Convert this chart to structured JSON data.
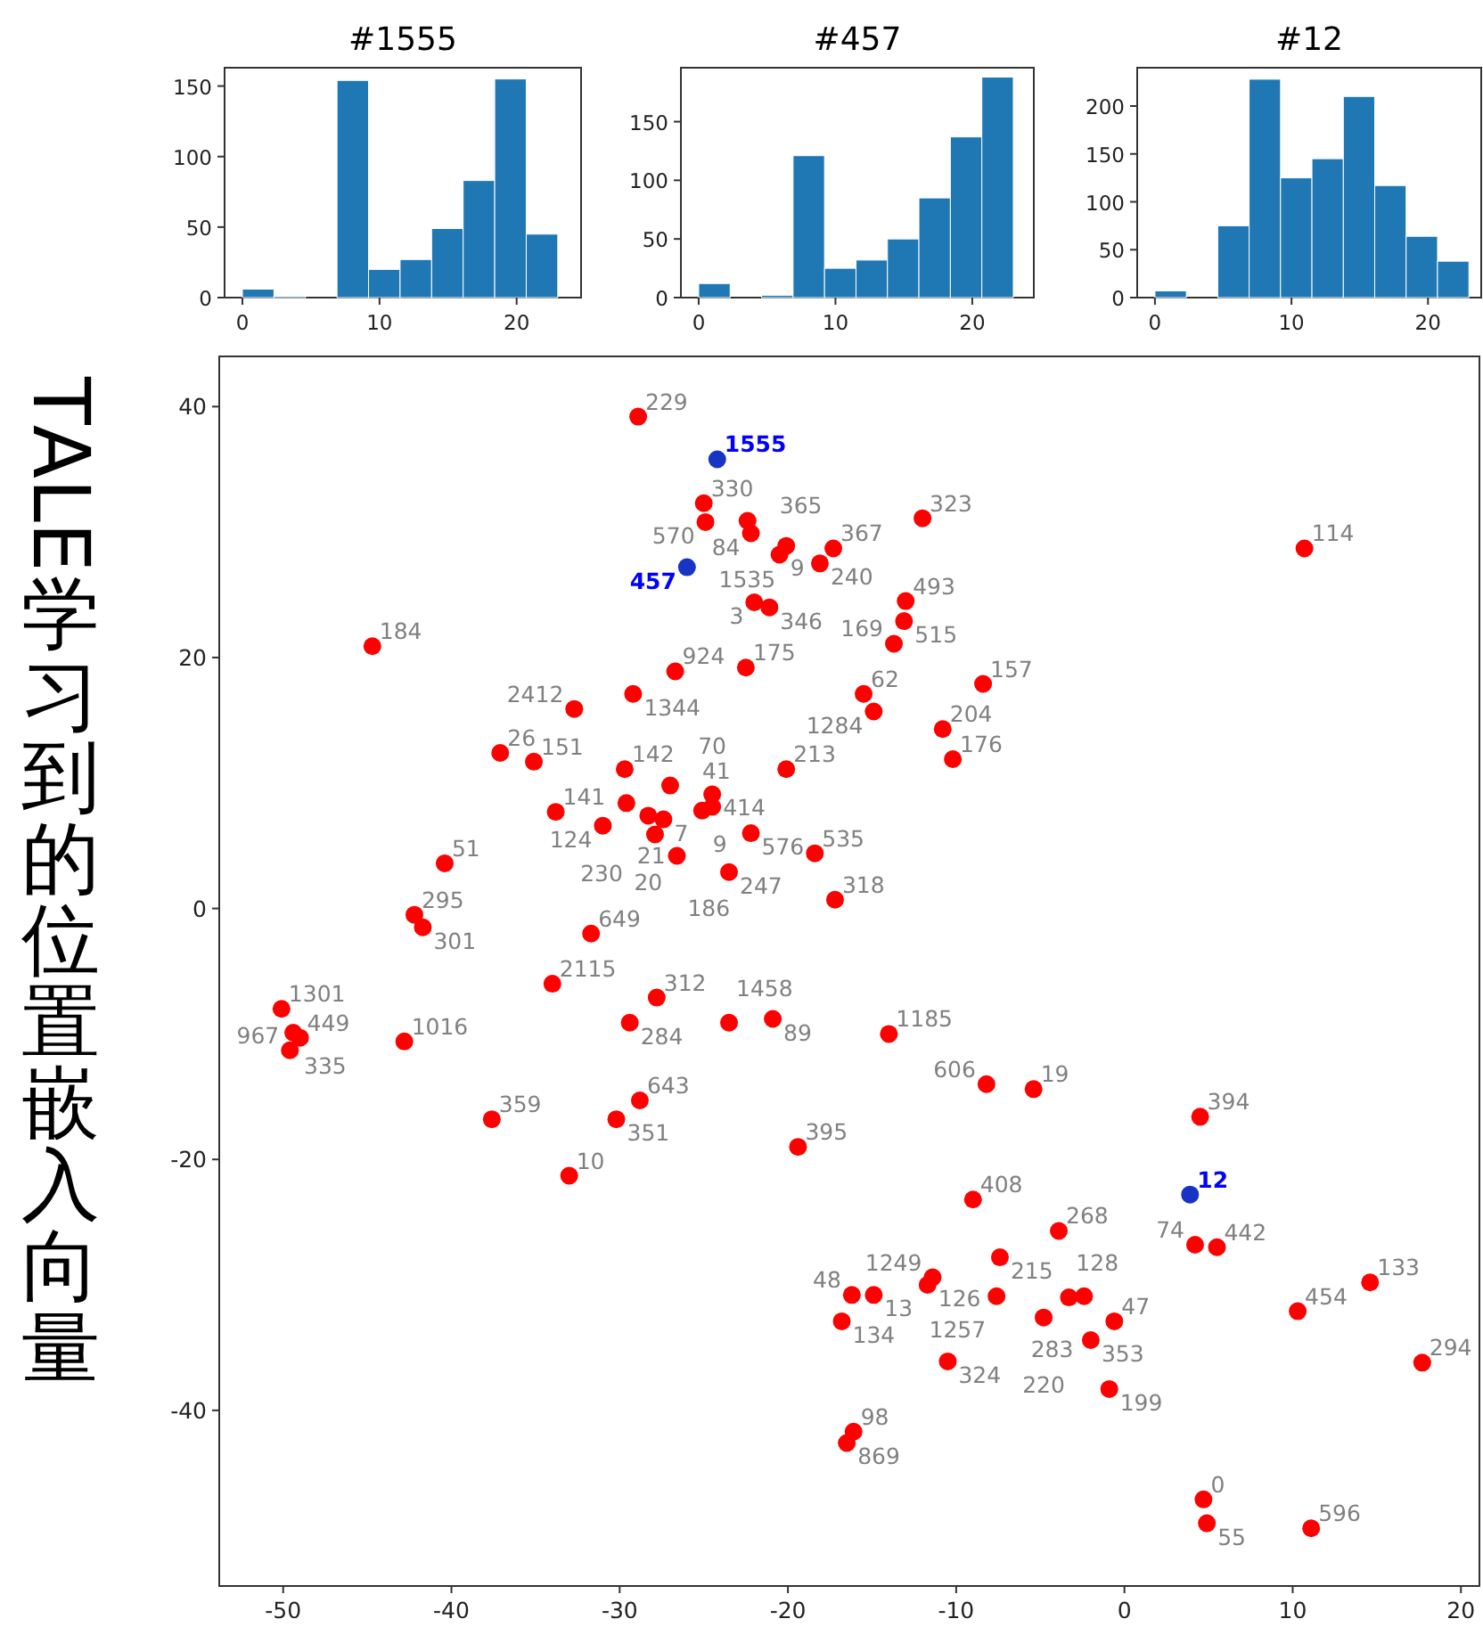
{
  "chart_data": [
    {
      "type": "histogram",
      "title": "#1555",
      "bins": [
        0,
        2.3,
        4.6,
        6.9,
        9.2,
        11.5,
        13.8,
        16.1,
        18.4,
        20.7,
        23
      ],
      "values": [
        6,
        1,
        0,
        154,
        20,
        27,
        49,
        83,
        155,
        45
      ],
      "color": "#1f77b4",
      "xlim": [
        -1.3,
        24.7
      ],
      "ylim": [
        0,
        163
      ],
      "xticks": [
        0,
        10,
        20
      ],
      "yticks": [
        0,
        50,
        100,
        150
      ],
      "grid": false
    },
    {
      "type": "histogram",
      "title": "#457",
      "bins": [
        0,
        2.3,
        4.6,
        6.9,
        9.2,
        11.5,
        13.8,
        16.1,
        18.4,
        20.7,
        23
      ],
      "values": [
        12,
        0,
        2,
        121,
        25,
        32,
        50,
        85,
        137,
        188
      ],
      "color": "#1f77b4",
      "xlim": [
        -1.3,
        24.5
      ],
      "ylim": [
        0,
        196
      ],
      "xticks": [
        0,
        10,
        20
      ],
      "yticks": [
        0,
        50,
        100,
        150
      ],
      "grid": false
    },
    {
      "type": "histogram",
      "title": "#12",
      "bins": [
        0,
        2.3,
        4.6,
        6.9,
        9.2,
        11.5,
        13.8,
        16.1,
        18.4,
        20.7,
        23
      ],
      "values": [
        7,
        0,
        75,
        228,
        125,
        145,
        210,
        117,
        64,
        38
      ],
      "color": "#1f77b4",
      "xlim": [
        -1.3,
        23.9
      ],
      "ylim": [
        0,
        240
      ],
      "xticks": [
        0,
        10,
        20
      ],
      "yticks": [
        0,
        50,
        100,
        150,
        200
      ],
      "grid": false
    },
    {
      "type": "scatter",
      "ylabel": "TALE学习到的位置嵌入向量",
      "xlim": [
        -53.8,
        21.1
      ],
      "ylim": [
        -54,
        44
      ],
      "xticks": [
        -50,
        -40,
        -30,
        -20,
        -10,
        0,
        10,
        20
      ],
      "yticks": [
        -40,
        -20,
        0,
        20,
        40
      ],
      "grid": false,
      "marker": "circle",
      "series": [
        {
          "color": "#ff0000",
          "x": [
            -28.9,
            -25.0,
            -24.9,
            -22.4,
            -22.2,
            -20.5,
            -20.1,
            -17.3,
            -18.1,
            -12.0,
            10.7,
            -22.0,
            -21.1,
            -13.0,
            -13.1,
            -13.7,
            -44.7,
            -26.7,
            -22.5,
            -8.4,
            -29.2,
            -15.5,
            -32.7,
            -14.9,
            -10.8,
            -37.1,
            -35.1,
            -10.2,
            -29.7,
            -20.1,
            -27.0,
            -24.5,
            -29.6,
            -28.3,
            -27.4,
            -25.1,
            -24.5,
            -33.8,
            -31.0,
            -27.9,
            -22.2,
            -26.6,
            -23.5,
            -18.4,
            -17.2,
            -40.4,
            -42.2,
            -41.7,
            -31.7,
            -34.0,
            -27.8,
            -29.4,
            -23.5,
            -20.9,
            -50.1,
            -49.4,
            -49.0,
            -49.6,
            -42.8,
            -14.0,
            -8.2,
            -5.4,
            -37.6,
            -28.8,
            -30.2,
            4.5,
            -19.4,
            -33.0,
            -9.0,
            -3.9,
            4.2,
            5.5,
            -7.4,
            -11.4,
            -11.7,
            -16.2,
            -14.9,
            -7.6,
            -3.3,
            -2.4,
            -16.8,
            -4.8,
            -0.6,
            -2.0,
            10.3,
            14.6,
            -10.5,
            17.7,
            -0.9,
            -16.1,
            -16.5,
            4.7,
            4.9,
            11.1
          ],
          "values": [
            39.2,
            32.3,
            30.8,
            30.9,
            29.9,
            28.2,
            28.9,
            28.7,
            27.5,
            31.1,
            28.7,
            24.4,
            24.0,
            24.5,
            22.9,
            21.1,
            20.9,
            18.9,
            19.2,
            17.9,
            17.1,
            17.1,
            15.9,
            15.7,
            14.3,
            12.4,
            11.7,
            11.9,
            11.1,
            11.1,
            9.8,
            9.1,
            8.4,
            7.4,
            7.1,
            7.8,
            8.1,
            7.7,
            6.6,
            5.9,
            6.0,
            4.2,
            2.9,
            4.4,
            0.7,
            3.6,
            -0.5,
            -1.5,
            -2.0,
            -6.0,
            -7.1,
            -9.1,
            -9.1,
            -8.8,
            -8.0,
            -9.9,
            -10.3,
            -11.3,
            -10.6,
            -10.0,
            -14.0,
            -14.4,
            -16.8,
            -15.3,
            -16.8,
            -16.6,
            -19.0,
            -21.3,
            -23.2,
            -25.7,
            -26.8,
            -27.0,
            -27.8,
            -29.4,
            -30.0,
            -30.8,
            -30.8,
            -30.9,
            -31.0,
            -30.9,
            -32.9,
            -32.6,
            -32.9,
            -34.4,
            -32.1,
            -29.8,
            -36.1,
            -36.2,
            -38.3,
            -41.7,
            -42.6,
            -47.1,
            -49.0,
            -49.4
          ]
        },
        {
          "color": "#1834c4",
          "x": [
            -24.2,
            -26.0,
            3.9
          ],
          "values": [
            35.8,
            27.2,
            -22.8
          ]
        }
      ],
      "annotations": [
        {
          "text": "229",
          "x": -28.9,
          "y": 39.2
        },
        {
          "text": "330",
          "x": -25.0,
          "y": 32.3
        },
        {
          "text": "570",
          "x": -24.9,
          "y": 30.8
        },
        {
          "text": "365",
          "x": -22.4,
          "y": 30.9
        },
        {
          "text": "84",
          "x": -22.2,
          "y": 29.9
        },
        {
          "text": "9",
          "x": -20.5,
          "y": 28.2
        },
        {
          "text": "1535",
          "x": -20.1,
          "y": 28.9
        },
        {
          "text": "367",
          "x": -17.3,
          "y": 28.7
        },
        {
          "text": "240",
          "x": -18.1,
          "y": 27.5
        },
        {
          "text": "323",
          "x": -12.0,
          "y": 31.1
        },
        {
          "text": "114",
          "x": 10.7,
          "y": 28.7
        },
        {
          "text": "3",
          "x": -22.0,
          "y": 24.4
        },
        {
          "text": "346",
          "x": -21.1,
          "y": 24.0
        },
        {
          "text": "493",
          "x": -13.0,
          "y": 24.5
        },
        {
          "text": "515",
          "x": -13.1,
          "y": 22.9
        },
        {
          "text": "169",
          "x": -13.7,
          "y": 21.1
        },
        {
          "text": "184",
          "x": -44.7,
          "y": 20.9
        },
        {
          "text": "924",
          "x": -26.7,
          "y": 18.9
        },
        {
          "text": "175",
          "x": -22.5,
          "y": 19.2
        },
        {
          "text": "157",
          "x": -8.4,
          "y": 17.9
        },
        {
          "text": "1344",
          "x": -29.2,
          "y": 17.1
        },
        {
          "text": "62",
          "x": -15.5,
          "y": 17.1
        },
        {
          "text": "2412",
          "x": -32.7,
          "y": 15.9
        },
        {
          "text": "1284",
          "x": -14.9,
          "y": 15.7
        },
        {
          "text": "204",
          "x": -10.8,
          "y": 14.3
        },
        {
          "text": "26",
          "x": -37.1,
          "y": 12.4
        },
        {
          "text": "151",
          "x": -35.1,
          "y": 11.7
        },
        {
          "text": "176",
          "x": -10.2,
          "y": 11.9
        },
        {
          "text": "142",
          "x": -29.7,
          "y": 11.1
        },
        {
          "text": "213",
          "x": -20.1,
          "y": 11.1
        },
        {
          "text": "41",
          "x": -27.0,
          "y": 9.8
        },
        {
          "text": "414",
          "x": -24.5,
          "y": 9.1
        },
        {
          "text": "21",
          "x": -29.6,
          "y": 8.4
        },
        {
          "text": "20",
          "x": -28.3,
          "y": 7.4
        },
        {
          "text": "7",
          "x": -27.4,
          "y": 7.1
        },
        {
          "text": "9",
          "x": -25.1,
          "y": 7.8
        },
        {
          "text": "70",
          "x": -24.5,
          "y": 8.1
        },
        {
          "text": "141",
          "x": -33.8,
          "y": 7.7
        },
        {
          "text": "124",
          "x": -31.0,
          "y": 6.6
        },
        {
          "text": "230",
          "x": -27.9,
          "y": 5.9
        },
        {
          "text": "576",
          "x": -22.2,
          "y": 6.0
        },
        {
          "text": "186",
          "x": -26.6,
          "y": 4.2
        },
        {
          "text": "247",
          "x": -23.5,
          "y": 2.9
        },
        {
          "text": "535",
          "x": -18.4,
          "y": 4.4
        },
        {
          "text": "318",
          "x": -17.2,
          "y": 0.7
        },
        {
          "text": "51",
          "x": -40.4,
          "y": 3.6
        },
        {
          "text": "295",
          "x": -42.2,
          "y": -0.5
        },
        {
          "text": "301",
          "x": -41.7,
          "y": -1.5
        },
        {
          "text": "649",
          "x": -31.7,
          "y": -2.0
        },
        {
          "text": "2115",
          "x": -34.0,
          "y": -6.0
        },
        {
          "text": "312",
          "x": -27.8,
          "y": -7.1
        },
        {
          "text": "284",
          "x": -29.4,
          "y": -9.1
        },
        {
          "text": "1458",
          "x": -23.5,
          "y": -9.1
        },
        {
          "text": "89",
          "x": -20.9,
          "y": -8.8
        },
        {
          "text": "1301",
          "x": -50.1,
          "y": -8.0
        },
        {
          "text": "335",
          "x": -49.4,
          "y": -9.9
        },
        {
          "text": "449",
          "x": -49.0,
          "y": -10.3
        },
        {
          "text": "967",
          "x": -49.6,
          "y": -11.3
        },
        {
          "text": "1016",
          "x": -42.8,
          "y": -10.6
        },
        {
          "text": "1185",
          "x": -14.0,
          "y": -10.0
        },
        {
          "text": "606",
          "x": -8.2,
          "y": -14.0
        },
        {
          "text": "19",
          "x": -5.4,
          "y": -14.4
        },
        {
          "text": "359",
          "x": -37.6,
          "y": -16.8
        },
        {
          "text": "643",
          "x": -28.8,
          "y": -15.3
        },
        {
          "text": "351",
          "x": -30.2,
          "y": -16.8
        },
        {
          "text": "394",
          "x": 4.5,
          "y": -16.6
        },
        {
          "text": "395",
          "x": -19.4,
          "y": -19.0
        },
        {
          "text": "10",
          "x": -33.0,
          "y": -21.3
        },
        {
          "text": "408",
          "x": -9.0,
          "y": -23.2
        },
        {
          "text": "268",
          "x": -3.9,
          "y": -25.7
        },
        {
          "text": "74",
          "x": 4.2,
          "y": -26.8
        },
        {
          "text": "442",
          "x": 5.5,
          "y": -27.0
        },
        {
          "text": "215",
          "x": -7.4,
          "y": -27.8
        },
        {
          "text": "1249",
          "x": -11.4,
          "y": -29.4
        },
        {
          "text": "126",
          "x": -11.7,
          "y": -30.0
        },
        {
          "text": "48",
          "x": -16.2,
          "y": -30.8
        },
        {
          "text": "13",
          "x": -14.9,
          "y": -30.8
        },
        {
          "text": "1257",
          "x": -7.6,
          "y": -30.9
        },
        {
          "text": "128",
          "x": -3.3,
          "y": -31.0
        },
        {
          "text": "283",
          "x": -2.4,
          "y": -30.9
        },
        {
          "text": "134",
          "x": -16.8,
          "y": -32.9
        },
        {
          "text": "220",
          "x": -4.8,
          "y": -32.6
        },
        {
          "text": "47",
          "x": -0.6,
          "y": -32.9
        },
        {
          "text": "353",
          "x": -2.0,
          "y": -34.4
        },
        {
          "text": "454",
          "x": 10.3,
          "y": -32.1
        },
        {
          "text": "133",
          "x": 14.6,
          "y": -29.8
        },
        {
          "text": "324",
          "x": -10.5,
          "y": -36.1
        },
        {
          "text": "294",
          "x": 17.7,
          "y": -36.2
        },
        {
          "text": "199",
          "x": -0.9,
          "y": -38.3
        },
        {
          "text": "98",
          "x": -16.1,
          "y": -41.7
        },
        {
          "text": "869",
          "x": -16.5,
          "y": -42.6
        },
        {
          "text": "0",
          "x": 4.7,
          "y": -47.1
        },
        {
          "text": "55",
          "x": 4.9,
          "y": -49.0
        },
        {
          "text": "596",
          "x": 11.1,
          "y": -49.4
        },
        {
          "text": "1555",
          "x": -24.2,
          "y": 35.8
        },
        {
          "text": "457",
          "x": -26.0,
          "y": 27.2
        },
        {
          "text": "12",
          "x": 3.9,
          "y": -22.8
        }
      ]
    }
  ]
}
